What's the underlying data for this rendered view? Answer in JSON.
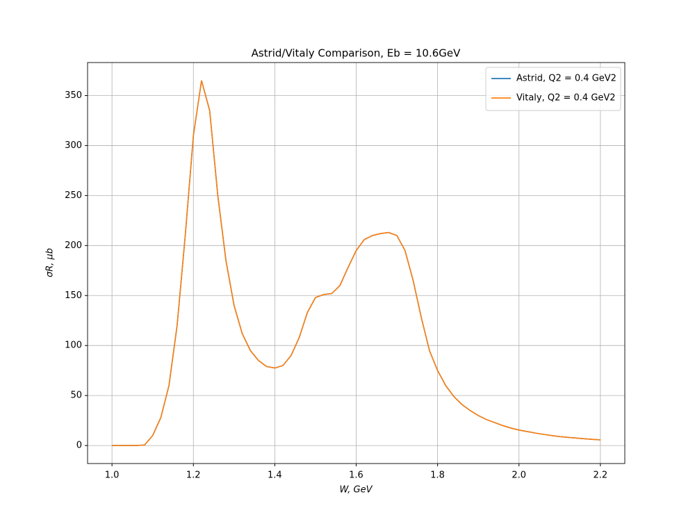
{
  "chart_data": {
    "type": "line",
    "title": "Astrid/Vitaly Comparison, Eb = 10.6GeV",
    "x_label": "W, GeV",
    "y_label": "σR, μb",
    "x": [
      1.0,
      1.02,
      1.04,
      1.06,
      1.08,
      1.1,
      1.12,
      1.14,
      1.16,
      1.18,
      1.2,
      1.22,
      1.24,
      1.26,
      1.28,
      1.3,
      1.32,
      1.34,
      1.36,
      1.38,
      1.4,
      1.42,
      1.44,
      1.46,
      1.48,
      1.5,
      1.52,
      1.54,
      1.56,
      1.58,
      1.6,
      1.62,
      1.64,
      1.66,
      1.68,
      1.7,
      1.72,
      1.74,
      1.76,
      1.78,
      1.8,
      1.82,
      1.84,
      1.86,
      1.88,
      1.9,
      1.92,
      1.94,
      1.96,
      1.98,
      2.0,
      2.02,
      2.04,
      2.06,
      2.08,
      2.1,
      2.12,
      2.14,
      2.16,
      2.18,
      2.2
    ],
    "series": [
      {
        "name": "Astrid, Q2 = 0.4 GeV2",
        "color": "#1f77b4",
        "values": [
          0,
          0,
          0,
          0,
          0.5,
          10,
          28,
          60,
          120,
          210,
          310,
          365,
          335,
          250,
          185,
          140,
          112,
          95,
          85,
          79,
          77.5,
          80,
          90,
          108,
          133,
          148,
          151,
          152,
          160,
          178,
          195,
          206,
          210,
          212,
          213,
          210,
          195,
          165,
          128,
          95,
          75,
          60,
          49,
          41,
          35,
          30,
          26,
          23,
          20,
          17.5,
          15.5,
          14,
          12.5,
          11.2,
          10,
          9,
          8.2,
          7.5,
          6.8,
          6.2,
          5.7
        ]
      },
      {
        "name": "Vitaly, Q2 = 0.4 GeV2",
        "color": "#ff7f0e",
        "values": [
          0,
          0,
          0,
          0,
          0.5,
          10,
          28,
          60,
          120,
          210,
          310,
          365,
          335,
          250,
          185,
          140,
          112,
          95,
          85,
          79,
          77.5,
          80,
          90,
          108,
          133,
          148,
          151,
          152,
          160,
          178,
          195,
          206,
          210,
          212,
          213,
          210,
          195,
          165,
          128,
          95,
          75,
          60,
          49,
          41,
          35,
          30,
          26,
          23,
          20,
          17.5,
          15.5,
          14,
          12.5,
          11.2,
          10,
          9,
          8.2,
          7.5,
          6.8,
          6.2,
          5.7
        ]
      }
    ],
    "xlim": [
      0.94,
      2.26
    ],
    "ylim": [
      -18,
      383
    ],
    "xticks": [
      {
        "value": 1,
        "label": "1.0"
      },
      1.2,
      1.4,
      1.6,
      1.8,
      {
        "value": 2,
        "label": "2.0"
      },
      2.2
    ],
    "yticks": [
      0,
      50,
      100,
      150,
      200,
      250,
      300,
      350
    ],
    "grid": true,
    "legend": "upper right"
  }
}
